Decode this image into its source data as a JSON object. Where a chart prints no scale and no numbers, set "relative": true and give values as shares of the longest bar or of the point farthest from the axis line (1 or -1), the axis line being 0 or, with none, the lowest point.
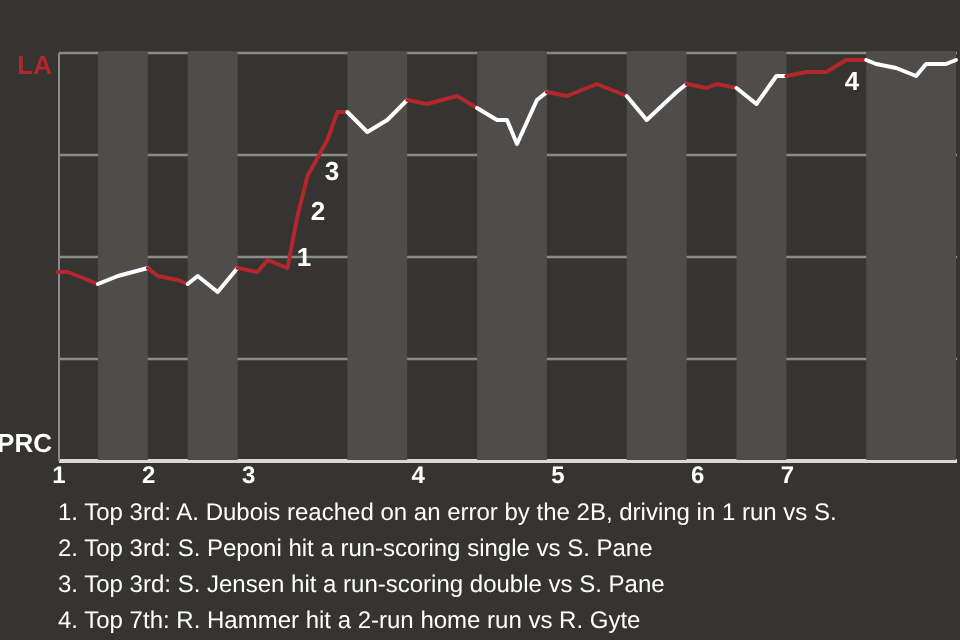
{
  "chart_data": {
    "type": "line",
    "relative": true,
    "categories": [
      "1",
      null,
      null,
      null,
      null,
      null,
      null,
      null,
      null,
      "2",
      null,
      null,
      null,
      null,
      null,
      null,
      null,
      null,
      null,
      "3",
      null,
      null,
      null,
      null,
      null,
      null,
      null,
      null,
      null,
      null,
      null,
      null,
      null,
      null,
      null,
      null,
      "4",
      null,
      null,
      null,
      null,
      null,
      null,
      null,
      null,
      null,
      null,
      null,
      null,
      null,
      "5",
      null,
      null,
      null,
      null,
      null,
      null,
      null,
      null,
      null,
      null,
      null,
      null,
      null,
      "6",
      null,
      null,
      null,
      null,
      null,
      null,
      null,
      null,
      "7",
      null,
      null,
      null,
      null,
      null,
      null,
      null,
      null,
      null,
      null,
      null,
      null,
      null,
      null,
      null,
      null,
      null
    ],
    "grid": "y",
    "series": [
      {
        "color": "#b3262b",
        "values": [
          0.47,
          0.47,
          null,
          0.45,
          0.44,
          null,
          null,
          null,
          null,
          null,
          null,
          null,
          null,
          null,
          null,
          null,
          null,
          null,
          null,
          null,
          null,
          null,
          null,
          null,
          null,
          null,
          null,
          null,
          null,
          null,
          null,
          null,
          null,
          null,
          null,
          null,
          null,
          null,
          null,
          null,
          null,
          null,
          null,
          null,
          null,
          null,
          null,
          null,
          null,
          null,
          null,
          null,
          null,
          null,
          null,
          null,
          null,
          null,
          null,
          null,
          null,
          null,
          null,
          null,
          null,
          null,
          null,
          null,
          null,
          null,
          null,
          null,
          null,
          null,
          null,
          null,
          null,
          null,
          null,
          null,
          null,
          null,
          null,
          null,
          null,
          null,
          null,
          null,
          null,
          null,
          null
        ]
      },
      {
        "color": "#ffffff",
        "values": [
          null,
          null,
          null,
          null,
          0.44,
          null,
          0.46,
          null,
          null,
          0.48,
          null,
          null,
          null,
          null,
          null,
          null,
          null,
          null,
          null,
          null,
          null,
          null,
          null,
          null,
          null,
          null,
          null,
          null,
          null,
          null,
          null,
          null,
          null,
          null,
          null,
          null,
          null,
          null,
          null,
          null,
          null,
          null,
          null,
          null,
          null,
          null,
          null,
          null,
          null,
          null,
          null,
          null,
          null,
          null,
          null,
          null,
          null,
          null,
          null,
          null,
          null,
          null,
          null,
          null,
          null,
          null,
          null,
          null,
          null,
          null,
          null,
          null,
          null,
          null,
          null,
          null,
          null,
          null,
          null,
          null,
          null,
          null,
          null,
          null,
          null,
          null,
          null,
          null,
          null,
          null,
          null
        ]
      },
      {
        "color": "#b3262b",
        "values": [
          null,
          null,
          null,
          null,
          null,
          null,
          null,
          null,
          null,
          0.48,
          0.46,
          null,
          0.45,
          0.44,
          null,
          null,
          null,
          null,
          null,
          null,
          null,
          null,
          null,
          null,
          null,
          null,
          null,
          null,
          null,
          null,
          null,
          null,
          null,
          null,
          null,
          null,
          null,
          null,
          null,
          null,
          null,
          null,
          null,
          null,
          null,
          null,
          null,
          null,
          null,
          null,
          null,
          null,
          null,
          null,
          null,
          null,
          null,
          null,
          null,
          null,
          null,
          null,
          null,
          null,
          null,
          null,
          null,
          null,
          null,
          null,
          null,
          null,
          null,
          null,
          null,
          null,
          null,
          null,
          null,
          null,
          null,
          null,
          null,
          null,
          null,
          null,
          null,
          null,
          null,
          null,
          null
        ]
      },
      {
        "color": "#ffffff",
        "values": [
          null,
          null,
          null,
          null,
          null,
          null,
          null,
          null,
          null,
          null,
          null,
          null,
          null,
          0.44,
          0.46,
          null,
          0.42,
          null,
          0.48,
          null,
          null,
          null,
          null,
          null,
          null,
          null,
          null,
          null,
          null,
          null,
          null,
          null,
          null,
          null,
          null,
          null,
          null,
          null,
          null,
          null,
          null,
          null,
          null,
          null,
          null,
          null,
          null,
          null,
          null,
          null,
          null,
          null,
          null,
          null,
          null,
          null,
          null,
          null,
          null,
          null,
          null,
          null,
          null,
          null,
          null,
          null,
          null,
          null,
          null,
          null,
          null,
          null,
          null,
          null,
          null,
          null,
          null,
          null,
          null,
          null,
          null,
          null,
          null,
          null,
          null,
          null,
          null,
          null,
          null,
          null,
          null
        ]
      },
      {
        "color": "#b3262b",
        "values": [
          null,
          null,
          null,
          null,
          null,
          null,
          null,
          null,
          null,
          null,
          null,
          null,
          null,
          null,
          null,
          null,
          null,
          null,
          0.48,
          null,
          0.47,
          0.5,
          null,
          0.48,
          0.61,
          0.71,
          null,
          0.8,
          0.87,
          0.87,
          null,
          null,
          null,
          null,
          null,
          null,
          null,
          null,
          null,
          null,
          null,
          null,
          null,
          null,
          null,
          null,
          null,
          null,
          null,
          null,
          null,
          null,
          null,
          null,
          null,
          null,
          null,
          null,
          null,
          null,
          null,
          null,
          null,
          null,
          null,
          null,
          null,
          null,
          null,
          null,
          null,
          null,
          null,
          null,
          null,
          null,
          null,
          null,
          null,
          null,
          null,
          null,
          null,
          null,
          null,
          null,
          null,
          null,
          null,
          null,
          null
        ]
      },
      {
        "color": "#ffffff",
        "values": [
          null,
          null,
          null,
          null,
          null,
          null,
          null,
          null,
          null,
          null,
          null,
          null,
          null,
          null,
          null,
          null,
          null,
          null,
          null,
          null,
          null,
          null,
          null,
          null,
          null,
          null,
          null,
          null,
          null,
          0.87,
          null,
          0.82,
          null,
          0.85,
          null,
          0.9,
          null,
          null,
          null,
          null,
          null,
          null,
          null,
          null,
          null,
          null,
          null,
          null,
          null,
          null,
          null,
          null,
          null,
          null,
          null,
          null,
          null,
          null,
          null,
          null,
          null,
          null,
          null,
          null,
          null,
          null,
          null,
          null,
          null,
          null,
          null,
          null,
          null,
          null,
          null,
          null,
          null,
          null,
          null,
          null,
          null,
          null,
          null,
          null,
          null,
          null,
          null,
          null,
          null,
          null,
          null
        ]
      },
      {
        "color": "#b3262b",
        "values": [
          null,
          null,
          null,
          null,
          null,
          null,
          null,
          null,
          null,
          null,
          null,
          null,
          null,
          null,
          null,
          null,
          null,
          null,
          null,
          null,
          null,
          null,
          null,
          null,
          null,
          null,
          null,
          null,
          null,
          null,
          null,
          null,
          null,
          null,
          null,
          0.9,
          null,
          0.89,
          null,
          null,
          0.91,
          null,
          0.88,
          null,
          null,
          null,
          null,
          null,
          null,
          null,
          null,
          null,
          null,
          null,
          null,
          null,
          null,
          null,
          null,
          null,
          null,
          null,
          null,
          null,
          null,
          null,
          null,
          null,
          null,
          null,
          null,
          null,
          null,
          null,
          null,
          null,
          null,
          null,
          null,
          null,
          null,
          null,
          null,
          null,
          null,
          null,
          null,
          null,
          null,
          null,
          null
        ]
      },
      {
        "color": "#ffffff",
        "values": [
          null,
          null,
          null,
          null,
          null,
          null,
          null,
          null,
          null,
          null,
          null,
          null,
          null,
          null,
          null,
          null,
          null,
          null,
          null,
          null,
          null,
          null,
          null,
          null,
          null,
          null,
          null,
          null,
          null,
          null,
          null,
          null,
          null,
          null,
          null,
          null,
          null,
          null,
          null,
          null,
          null,
          null,
          0.88,
          null,
          0.85,
          0.85,
          0.79,
          null,
          0.9,
          0.92,
          null,
          null,
          null,
          null,
          null,
          null,
          null,
          null,
          null,
          null,
          null,
          null,
          null,
          null,
          null,
          null,
          null,
          null,
          null,
          null,
          null,
          null,
          null,
          null,
          null,
          null,
          null,
          null,
          null,
          null,
          null,
          null,
          null,
          null,
          null,
          null,
          null,
          null,
          null,
          null,
          null
        ]
      },
      {
        "color": "#b3262b",
        "values": [
          null,
          null,
          null,
          null,
          null,
          null,
          null,
          null,
          null,
          null,
          null,
          null,
          null,
          null,
          null,
          null,
          null,
          null,
          null,
          null,
          null,
          null,
          null,
          null,
          null,
          null,
          null,
          null,
          null,
          null,
          null,
          null,
          null,
          null,
          null,
          null,
          null,
          null,
          null,
          null,
          null,
          null,
          null,
          null,
          null,
          null,
          null,
          null,
          null,
          0.92,
          null,
          0.91,
          null,
          null,
          0.94,
          0.93,
          null,
          0.91,
          null,
          null,
          null,
          null,
          null,
          null,
          null,
          null,
          null,
          null,
          null,
          null,
          null,
          null,
          null,
          null,
          null,
          null,
          null,
          null,
          null,
          null,
          null,
          null,
          null,
          null,
          null,
          null,
          null,
          null,
          null,
          null,
          null
        ]
      },
      {
        "color": "#ffffff",
        "values": [
          null,
          null,
          null,
          null,
          null,
          null,
          null,
          null,
          null,
          null,
          null,
          null,
          null,
          null,
          null,
          null,
          null,
          null,
          null,
          null,
          null,
          null,
          null,
          null,
          null,
          null,
          null,
          null,
          null,
          null,
          null,
          null,
          null,
          null,
          null,
          null,
          null,
          null,
          null,
          null,
          null,
          null,
          null,
          null,
          null,
          null,
          null,
          null,
          null,
          null,
          null,
          null,
          null,
          null,
          null,
          null,
          null,
          0.91,
          null,
          0.85,
          null,
          null,
          0.92,
          0.94,
          null,
          null,
          null,
          null,
          null,
          null,
          null,
          null,
          null,
          null,
          null,
          null,
          null,
          null,
          null,
          null,
          null,
          null,
          null,
          null,
          null,
          null,
          null,
          null,
          null,
          null,
          null
        ]
      },
      {
        "color": "#b3262b",
        "values": [
          null,
          null,
          null,
          null,
          null,
          null,
          null,
          null,
          null,
          null,
          null,
          null,
          null,
          null,
          null,
          null,
          null,
          null,
          null,
          null,
          null,
          null,
          null,
          null,
          null,
          null,
          null,
          null,
          null,
          null,
          null,
          null,
          null,
          null,
          null,
          null,
          null,
          null,
          null,
          null,
          null,
          null,
          null,
          null,
          null,
          null,
          null,
          null,
          null,
          null,
          null,
          null,
          null,
          null,
          null,
          null,
          null,
          null,
          null,
          null,
          null,
          null,
          null,
          0.94,
          null,
          0.93,
          0.94,
          null,
          0.93,
          null,
          null,
          null,
          null,
          null,
          null,
          null,
          null,
          null,
          null,
          null,
          null,
          null,
          null,
          null,
          null,
          null,
          null,
          null,
          null,
          null,
          null
        ]
      },
      {
        "color": "#ffffff",
        "values": [
          null,
          null,
          null,
          null,
          null,
          null,
          null,
          null,
          null,
          null,
          null,
          null,
          null,
          null,
          null,
          null,
          null,
          null,
          null,
          null,
          null,
          null,
          null,
          null,
          null,
          null,
          null,
          null,
          null,
          null,
          null,
          null,
          null,
          null,
          null,
          null,
          null,
          null,
          null,
          null,
          null,
          null,
          null,
          null,
          null,
          null,
          null,
          null,
          null,
          null,
          null,
          null,
          null,
          null,
          null,
          null,
          null,
          null,
          null,
          null,
          null,
          null,
          null,
          null,
          null,
          null,
          null,
          null,
          0.93,
          null,
          0.89,
          null,
          0.96,
          0.96,
          null,
          null,
          null,
          null,
          null,
          null,
          null,
          null,
          null,
          null,
          null,
          null,
          null,
          null,
          null,
          null,
          null
        ]
      },
      {
        "color": "#b3262b",
        "values": [
          null,
          null,
          null,
          null,
          null,
          null,
          null,
          null,
          null,
          null,
          null,
          null,
          null,
          null,
          null,
          null,
          null,
          null,
          null,
          null,
          null,
          null,
          null,
          null,
          null,
          null,
          null,
          null,
          null,
          null,
          null,
          null,
          null,
          null,
          null,
          null,
          null,
          null,
          null,
          null,
          null,
          null,
          null,
          null,
          null,
          null,
          null,
          null,
          null,
          null,
          null,
          null,
          null,
          null,
          null,
          null,
          null,
          null,
          null,
          null,
          null,
          null,
          null,
          null,
          null,
          null,
          null,
          null,
          null,
          null,
          null,
          null,
          null,
          0.96,
          null,
          0.97,
          null,
          0.97,
          null,
          1,
          null,
          1,
          null,
          null,
          null,
          null,
          null,
          null,
          null,
          null,
          null
        ]
      },
      {
        "color": "#ffffff",
        "values": [
          null,
          null,
          null,
          null,
          null,
          null,
          null,
          null,
          null,
          null,
          null,
          null,
          null,
          null,
          null,
          null,
          null,
          null,
          null,
          null,
          null,
          null,
          null,
          null,
          null,
          null,
          null,
          null,
          null,
          null,
          null,
          null,
          null,
          null,
          null,
          null,
          null,
          null,
          null,
          null,
          null,
          null,
          null,
          null,
          null,
          null,
          null,
          null,
          null,
          null,
          null,
          null,
          null,
          null,
          null,
          null,
          null,
          null,
          null,
          null,
          null,
          null,
          null,
          null,
          null,
          null,
          null,
          null,
          null,
          null,
          null,
          null,
          null,
          null,
          null,
          null,
          null,
          null,
          null,
          null,
          null,
          1,
          0.99,
          null,
          0.98,
          null,
          0.96,
          0.99,
          null,
          0.99,
          1
        ]
      }
    ],
    "annotations": [
      "1",
      "2",
      "3",
      "4",
      "LA",
      "PRC",
      "1. Top 3rd: A. Dubois reached on an error by the 2B, driving in 1 run vs S.",
      "2. Top 3rd: S. Peponi hit a run-scoring single vs S. Pane",
      "3. Top 3rd: S. Jensen hit a run-scoring double vs S. Pane",
      "4. Top 7th: R. Hammer hit a 2-run home run vs R. Gyte"
    ]
  }
}
